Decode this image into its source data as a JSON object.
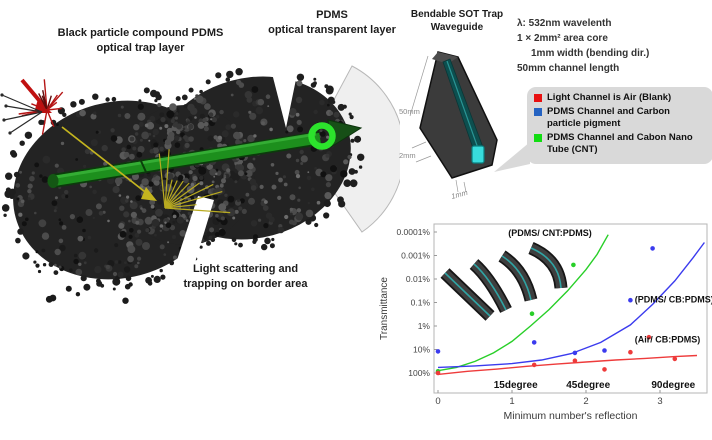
{
  "left_panel": {
    "trap_label": [
      "Black particle compound PDMS",
      "optical trap layer"
    ],
    "transparent_label": [
      "PDMS",
      "optical transparent layer"
    ],
    "caption": [
      "Light scattering and",
      "trapping on border area"
    ]
  },
  "waveguide_panel": {
    "title": [
      "Bendable SOT Trap",
      "Waveguide"
    ],
    "dims": {
      "length": "50mm",
      "height": "2mm",
      "width": "1mm"
    },
    "specs": [
      "λ: 532nm wavelenth",
      "1 × 2mm² area core",
      "1mm width (bending dir.)",
      "50mm channel length"
    ],
    "legend_items": [
      {
        "color": "#e81010",
        "label": "Light Channel is Air (Blank)"
      },
      {
        "color": "#2563c2",
        "label": "PDMS Channel and Carbon particle pigment"
      },
      {
        "color": "#12dd12",
        "label": "PDMS Channel and Cabon Nano Tube (CNT)"
      }
    ]
  },
  "chart_data": {
    "type": "scatter",
    "title": "",
    "xlabel": "Minimum number's reflection",
    "ylabel": "Transmittance",
    "x_ticks": [
      0,
      1,
      2,
      3
    ],
    "x_range": [
      0,
      3.64
    ],
    "y_scale": "log, inverted (100% at bottom, 0.0001% at top)",
    "y_tick_labels": [
      "0.0001%",
      "0.001%",
      "0.01%",
      "0.1%",
      "1%",
      "10%",
      "100%"
    ],
    "y_range_percent": [
      0.0001,
      100
    ],
    "grid": false,
    "bend_labels": [
      {
        "text": "15degree",
        "x": 1.05
      },
      {
        "text": "45degree",
        "x": 2.03
      },
      {
        "text": "90degree",
        "x": 3.18
      }
    ],
    "annotations": [
      {
        "text": "(PDMS/ CNT:PDMS)",
        "x": 0.95,
        "v": 0.00015
      },
      {
        "text": "(PDMS/ CB:PDMS)",
        "x": 2.66,
        "v": 0.1
      },
      {
        "text": "(Air/ CB:PDMS)",
        "x": 2.66,
        "v": 5
      }
    ],
    "series": [
      {
        "name": "PDMS/ CNT:PDMS",
        "color": "#28cf28",
        "points": [
          [
            0,
            85
          ],
          [
            1.27,
            0.3
          ],
          [
            1.83,
            0.0025
          ]
        ],
        "curve": [
          [
            0,
            80
          ],
          [
            0.25,
            58
          ],
          [
            0.5,
            32
          ],
          [
            0.75,
            14
          ],
          [
            1.0,
            4.5
          ],
          [
            1.25,
            1.0
          ],
          [
            1.5,
            0.2
          ],
          [
            1.75,
            0.032
          ],
          [
            2.0,
            0.004
          ],
          [
            2.15,
            0.0009
          ],
          [
            2.3,
            0.00013
          ]
        ]
      },
      {
        "name": "PDMS/ CB:PDMS",
        "color": "#3b3bee",
        "points": [
          [
            0,
            12
          ],
          [
            1.3,
            5
          ],
          [
            1.85,
            14
          ],
          [
            2.25,
            11
          ],
          [
            2.6,
            0.08
          ],
          [
            2.9,
            0.0005
          ]
        ],
        "curve": [
          [
            0,
            58
          ],
          [
            0.5,
            50
          ],
          [
            1.0,
            40
          ],
          [
            1.4,
            28
          ],
          [
            1.8,
            15
          ],
          [
            2.2,
            5
          ],
          [
            2.6,
            0.9
          ],
          [
            2.9,
            0.12
          ],
          [
            3.2,
            0.012
          ],
          [
            3.45,
            0.0012
          ],
          [
            3.6,
            0.00028
          ]
        ]
      },
      {
        "name": "Air/ CB:PDMS",
        "color": "#ee3b3b",
        "points": [
          [
            0,
            100
          ],
          [
            1.3,
            45
          ],
          [
            1.85,
            30
          ],
          [
            2.25,
            70
          ],
          [
            2.6,
            13
          ],
          [
            2.85,
            3
          ],
          [
            3.2,
            25
          ]
        ],
        "curve": [
          [
            0,
            115
          ],
          [
            0.4,
            85
          ],
          [
            0.8,
            68
          ],
          [
            1.2,
            52
          ],
          [
            1.6,
            42
          ],
          [
            2.0,
            34
          ],
          [
            2.4,
            28
          ],
          [
            2.8,
            24
          ],
          [
            3.2,
            20
          ],
          [
            3.5,
            18
          ]
        ]
      }
    ]
  }
}
